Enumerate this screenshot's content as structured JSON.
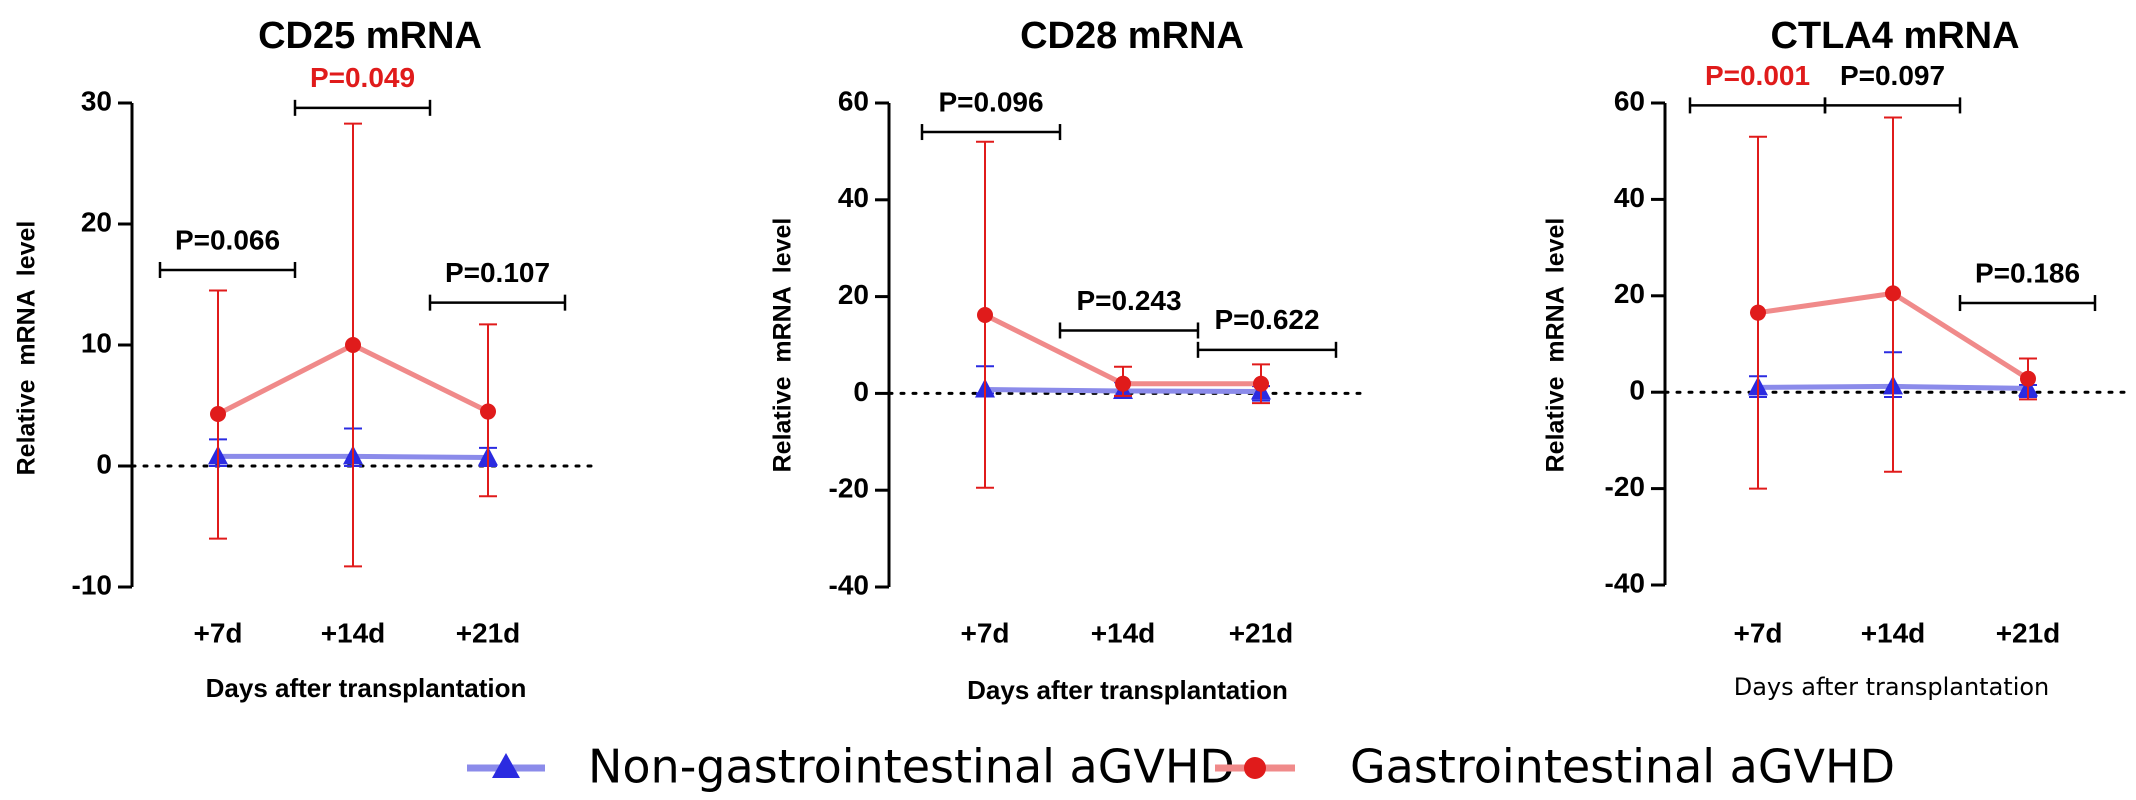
{
  "legend": {
    "items": [
      {
        "label": "Non-gastrointestinal aGVHD",
        "color": "#8B8BEA",
        "marker": "triangle",
        "marker_color": "#2B2BE0"
      },
      {
        "label": "Gastrointestinal aGVHD",
        "color": "#F08A8A",
        "marker": "circle",
        "marker_color": "#E01B1B"
      }
    ]
  },
  "chart_data": [
    {
      "type": "line",
      "title": "CD25 mRNA",
      "xlabel": "Days after transplantation",
      "ylabel": "Relative  mRNA  level",
      "categories": [
        "+7d",
        "+14d",
        "+21d"
      ],
      "ylim": [
        -10,
        30
      ],
      "yticks": [
        -10,
        0,
        10,
        20,
        30
      ],
      "reference_line": 0,
      "series": [
        {
          "name": "Non-gastrointestinal aGVHD",
          "values": [
            0.8,
            0.8,
            0.7
          ],
          "err_low": [
            0.0,
            0.0,
            0.0
          ],
          "err_high": [
            2.2,
            3.1,
            1.5
          ]
        },
        {
          "name": "Gastrointestinal aGVHD",
          "values": [
            4.3,
            10.0,
            4.5
          ],
          "err_low": [
            -6.0,
            -8.3,
            -2.5
          ],
          "err_high": [
            14.5,
            28.3,
            11.7
          ]
        }
      ],
      "annotations": [
        {
          "text": "P=0.066",
          "from": 0,
          "to": 1,
          "y": 16.2,
          "color": "#000000"
        },
        {
          "text": "P=0.049",
          "from": 1,
          "to": 2,
          "y": 29.6,
          "color": "#E01B1B"
        },
        {
          "text": "P=0.107",
          "from": 2,
          "to": 3,
          "y": 13.5,
          "color": "#000000"
        }
      ]
    },
    {
      "type": "line",
      "title": "CD28 mRNA",
      "xlabel": "Days after transplantation",
      "ylabel": "Relative  mRNA  level",
      "categories": [
        "+7d",
        "+14d",
        "+21d"
      ],
      "ylim": [
        -40,
        60
      ],
      "yticks": [
        -40,
        -20,
        0,
        20,
        40,
        60
      ],
      "reference_line": 0,
      "series": [
        {
          "name": "Non-gastrointestinal aGVHD",
          "values": [
            0.8,
            0.5,
            0.4
          ],
          "err_low": [
            0.0,
            -0.5,
            -1.5
          ],
          "err_high": [
            5.6,
            2.3,
            1.5
          ]
        },
        {
          "name": "Gastrointestinal aGVHD",
          "values": [
            16.2,
            2.0,
            2.0
          ],
          "err_low": [
            -19.5,
            -0.5,
            -2.0
          ],
          "err_high": [
            52.0,
            5.5,
            6.0
          ]
        }
      ],
      "annotations": [
        {
          "text": "P=0.096",
          "from": 0,
          "to": 1,
          "y": 54.0,
          "color": "#000000"
        },
        {
          "text": "P=0.243",
          "from": 1,
          "to": 2,
          "y": 13.0,
          "color": "#000000"
        },
        {
          "text": "P=0.622",
          "from": 2,
          "to": 3,
          "y": 9.0,
          "color": "#000000"
        }
      ]
    },
    {
      "type": "line",
      "title": "CTLA4 mRNA",
      "xlabel": "Days after transplantation",
      "ylabel": "Relative  mRNA  level",
      "categories": [
        "+7d",
        "+14d",
        "+21d"
      ],
      "ylim": [
        -40,
        60
      ],
      "yticks": [
        -40,
        -20,
        0,
        20,
        40,
        60
      ],
      "reference_line": 0,
      "series": [
        {
          "name": "Non-gastrointestinal aGVHD",
          "values": [
            1.0,
            1.2,
            0.8
          ],
          "err_low": [
            -1.0,
            -1.0,
            -1.0
          ],
          "err_high": [
            3.3,
            8.3,
            1.5
          ]
        },
        {
          "name": "Gastrointestinal aGVHD",
          "values": [
            16.5,
            20.5,
            2.8
          ],
          "err_low": [
            -20.0,
            -16.5,
            -1.5
          ],
          "err_high": [
            53.0,
            57.0,
            7.0
          ]
        }
      ],
      "annotations": [
        {
          "text": "P=0.001",
          "from": 0,
          "to": 1,
          "y": 59.5,
          "color": "#E01B1B"
        },
        {
          "text": "P=0.097",
          "from": 1,
          "to": 2,
          "y": 59.5,
          "color": "#000000"
        },
        {
          "text": "P=0.186",
          "from": 2,
          "to": 3,
          "y": 18.5,
          "color": "#000000"
        }
      ]
    }
  ]
}
